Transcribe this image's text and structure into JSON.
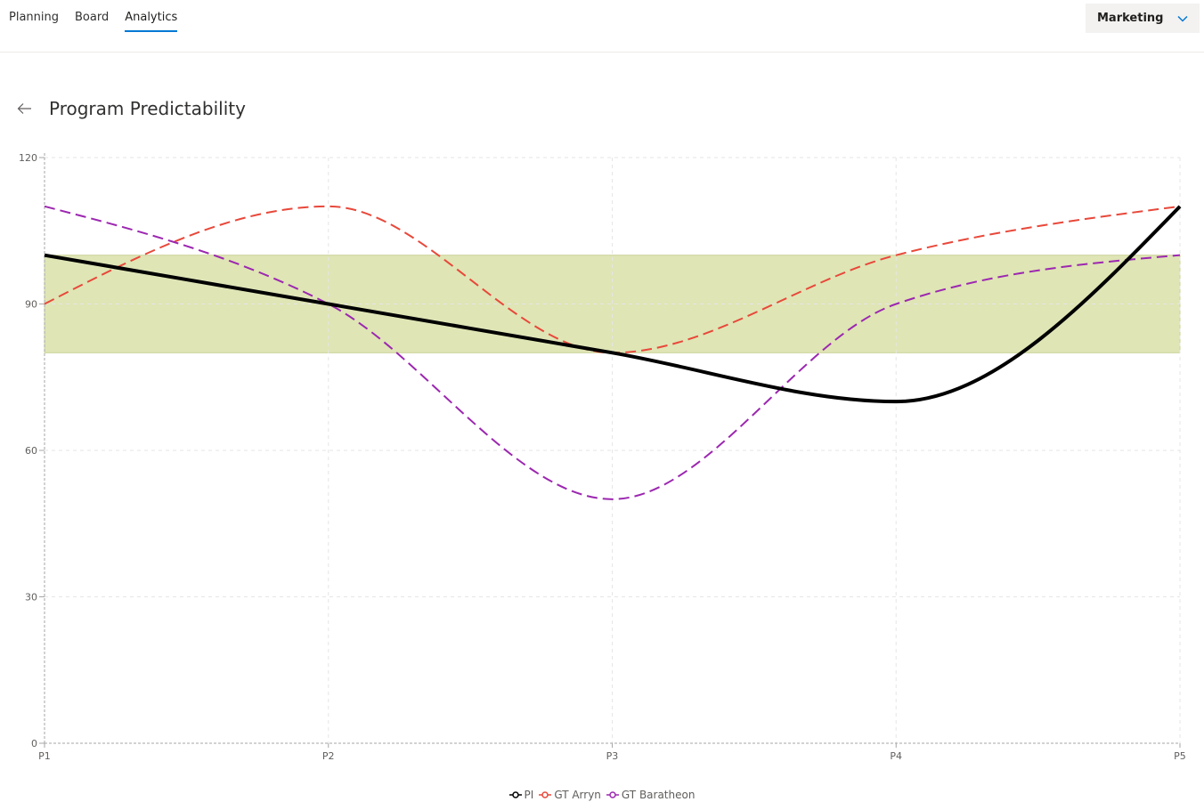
{
  "nav": {
    "tabs": [
      {
        "label": "Planning",
        "active": false
      },
      {
        "label": "Board",
        "active": false
      },
      {
        "label": "Analytics",
        "active": true
      }
    ]
  },
  "team_selector": {
    "value": "Marketing"
  },
  "page": {
    "title": "Program Predictability"
  },
  "chart_data": {
    "type": "line",
    "title": "",
    "categories": [
      "P1",
      "P2",
      "P3",
      "P4",
      "P5"
    ],
    "ylim": [
      0,
      120
    ],
    "yticks": [
      0,
      30,
      60,
      90,
      120
    ],
    "grid": true,
    "target_band": {
      "from": 80,
      "to": 100,
      "color": "#dfe5b5"
    },
    "legend_position": "bottom",
    "series": [
      {
        "name": "PI",
        "values": [
          100,
          90,
          80,
          70,
          110
        ],
        "color": "#000000",
        "dashed": false
      },
      {
        "name": "GT Arryn",
        "values": [
          90,
          110,
          80,
          100,
          110
        ],
        "color": "#e8483a",
        "dashed": true
      },
      {
        "name": "GT Baratheon",
        "values": [
          110,
          90,
          50,
          90,
          100
        ],
        "color": "#9c27b0",
        "dashed": true
      }
    ]
  }
}
